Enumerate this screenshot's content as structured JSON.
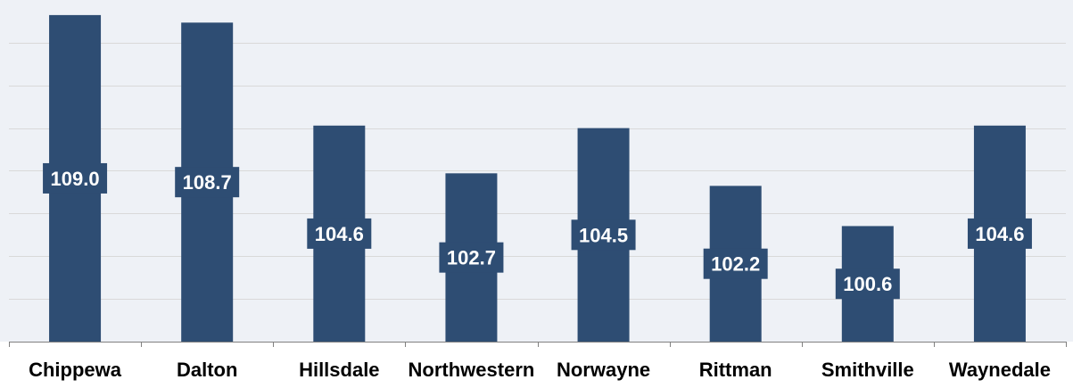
{
  "chart_data": {
    "type": "bar",
    "categories": [
      "Chippewa",
      "Dalton",
      "Hillsdale",
      "Northwestern",
      "Norwayne",
      "Rittman",
      "Smithville",
      "Waynedale"
    ],
    "values": [
      109.0,
      108.7,
      104.6,
      102.7,
      104.5,
      102.2,
      100.6,
      104.6
    ],
    "value_labels": [
      "109.0",
      "108.7",
      "104.6",
      "102.7",
      "104.5",
      "102.2",
      "100.6",
      "104.6"
    ],
    "title": "",
    "xlabel": "",
    "ylabel": "",
    "ylim": [
      96,
      109.6
    ],
    "grid": true,
    "legend": "none",
    "colors": {
      "bar": "#2e4d73",
      "plot_background": "#eef1f6",
      "gridline": "#d9d9d9"
    }
  }
}
